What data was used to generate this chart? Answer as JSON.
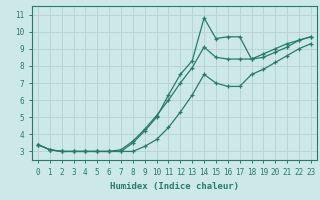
{
  "xlabel": "Humidex (Indice chaleur)",
  "ylabel": "",
  "bg_color": "#cce8e8",
  "grid_color": "#b8d4d4",
  "line_color": "#2a7a6a",
  "xmin": -0.5,
  "xmax": 23.5,
  "ymin": 2.5,
  "ymax": 11.5,
  "yticks": [
    3,
    4,
    5,
    6,
    7,
    8,
    9,
    10,
    11
  ],
  "xticks": [
    0,
    1,
    2,
    3,
    4,
    5,
    6,
    7,
    8,
    9,
    10,
    11,
    12,
    13,
    14,
    15,
    16,
    17,
    18,
    19,
    20,
    21,
    22,
    23
  ],
  "curve1_x": [
    0,
    1,
    2,
    3,
    4,
    5,
    6,
    7,
    8,
    9,
    10,
    11,
    12,
    13,
    14,
    15,
    16,
    17,
    18,
    19,
    20,
    21,
    22,
    23
  ],
  "curve1_y": [
    3.4,
    3.1,
    3.0,
    3.0,
    3.0,
    3.0,
    3.0,
    3.0,
    3.5,
    4.2,
    5.0,
    6.3,
    7.5,
    8.3,
    10.8,
    9.6,
    9.7,
    9.7,
    8.4,
    8.5,
    8.8,
    9.1,
    9.5,
    9.7
  ],
  "curve2_x": [
    0,
    1,
    2,
    3,
    4,
    5,
    6,
    7,
    8,
    9,
    10,
    11,
    12,
    13,
    14,
    15,
    16,
    17,
    18,
    19,
    20,
    21,
    22,
    23
  ],
  "curve2_y": [
    3.4,
    3.1,
    3.0,
    3.0,
    3.0,
    3.0,
    3.0,
    3.1,
    3.6,
    4.3,
    5.1,
    6.0,
    7.0,
    7.9,
    9.1,
    8.5,
    8.4,
    8.4,
    8.4,
    8.7,
    9.0,
    9.3,
    9.5,
    9.7
  ],
  "curve3_x": [
    0,
    1,
    2,
    3,
    4,
    5,
    6,
    7,
    8,
    9,
    10,
    11,
    12,
    13,
    14,
    15,
    16,
    17,
    18,
    19,
    20,
    21,
    22,
    23
  ],
  "curve3_y": [
    3.4,
    3.1,
    3.0,
    3.0,
    3.0,
    3.0,
    3.0,
    3.0,
    3.0,
    3.3,
    3.7,
    4.4,
    5.3,
    6.3,
    7.5,
    7.0,
    6.8,
    6.8,
    7.5,
    7.8,
    8.2,
    8.6,
    9.0,
    9.3
  ]
}
